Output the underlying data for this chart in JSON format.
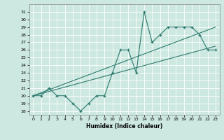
{
  "xlabel": "Humidex (Indice chaleur)",
  "bg_color": "#cce8e0",
  "line_color": "#2d7a6e",
  "x_values": [
    0,
    1,
    2,
    3,
    4,
    5,
    6,
    7,
    8,
    9,
    10,
    11,
    12,
    13,
    14,
    15,
    16,
    17,
    18,
    19,
    20,
    21,
    22,
    23
  ],
  "y_main": [
    20,
    20,
    21,
    20,
    20,
    19,
    18,
    19,
    20,
    20,
    23,
    26,
    26,
    23,
    31,
    27,
    28,
    29,
    29,
    29,
    29,
    28,
    26,
    26
  ],
  "trend1_x": [
    0,
    23
  ],
  "trend1_y": [
    20.0,
    29.0
  ],
  "trend2_x": [
    0,
    23
  ],
  "trend2_y": [
    20.0,
    26.5
  ],
  "ylim": [
    17.5,
    32.0
  ],
  "xlim": [
    -0.5,
    23.5
  ],
  "yticks": [
    18,
    19,
    20,
    21,
    22,
    23,
    24,
    25,
    26,
    27,
    28,
    29,
    30,
    31
  ],
  "xticks": [
    0,
    1,
    2,
    3,
    4,
    5,
    6,
    7,
    8,
    9,
    10,
    11,
    12,
    13,
    14,
    15,
    16,
    17,
    18,
    19,
    20,
    21,
    22,
    23
  ]
}
